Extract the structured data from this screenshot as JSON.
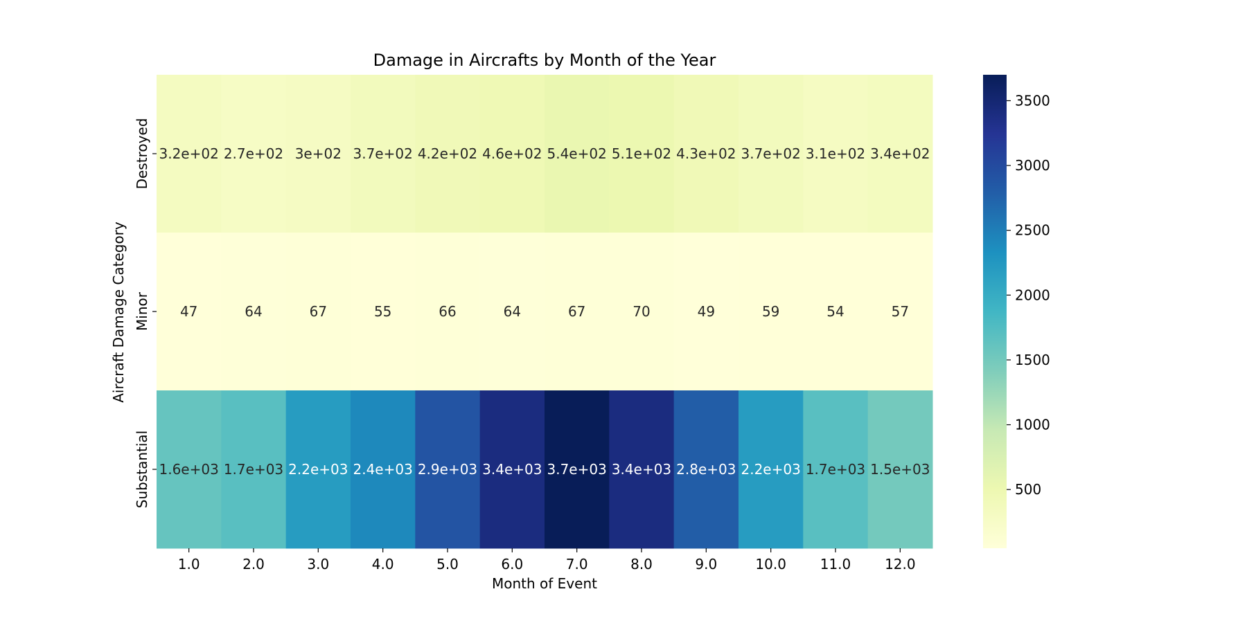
{
  "chart_data": {
    "type": "heatmap",
    "title": "Damage in Aircrafts by Month of the Year",
    "xlabel": "Month of Event",
    "ylabel": "Aircraft Damage Category",
    "x_categories": [
      "1.0",
      "2.0",
      "3.0",
      "4.0",
      "5.0",
      "6.0",
      "7.0",
      "8.0",
      "9.0",
      "10.0",
      "11.0",
      "12.0"
    ],
    "y_categories": [
      "Destroyed",
      "Minor",
      "Substantial"
    ],
    "values": [
      [
        320,
        270,
        300,
        370,
        420,
        460,
        540,
        510,
        430,
        370,
        310,
        340
      ],
      [
        47,
        64,
        67,
        55,
        66,
        64,
        67,
        70,
        49,
        59,
        54,
        57
      ],
      [
        1600,
        1700,
        2200,
        2400,
        2900,
        3400,
        3700,
        3400,
        2800,
        2200,
        1700,
        1500
      ]
    ],
    "cell_labels": [
      [
        "3.2e+02",
        "2.7e+02",
        "3e+02",
        "3.7e+02",
        "4.2e+02",
        "4.6e+02",
        "5.4e+02",
        "5.1e+02",
        "4.3e+02",
        "3.7e+02",
        "3.1e+02",
        "3.4e+02"
      ],
      [
        "47",
        "64",
        "67",
        "55",
        "66",
        "64",
        "67",
        "70",
        "49",
        "59",
        "54",
        "57"
      ],
      [
        "1.6e+03",
        "1.7e+03",
        "2.2e+03",
        "2.4e+03",
        "2.9e+03",
        "3.4e+03",
        "3.7e+03",
        "3.4e+03",
        "2.8e+03",
        "2.2e+03",
        "1.7e+03",
        "1.5e+03"
      ]
    ],
    "colormap": "YlGnBu",
    "color_range": [
      47,
      3700
    ],
    "colorbar_ticks": [
      500,
      1000,
      1500,
      2000,
      2500,
      3000,
      3500
    ],
    "colorbar_tick_labels": [
      "500",
      "1000",
      "1500",
      "2000",
      "2500",
      "3000",
      "3500"
    ],
    "colormap_stops": [
      "#ffffd9",
      "#edf8b1",
      "#c7e9b4",
      "#7fcdbb",
      "#41b6c4",
      "#1d91c0",
      "#225ea8",
      "#253494",
      "#081d58"
    ]
  }
}
